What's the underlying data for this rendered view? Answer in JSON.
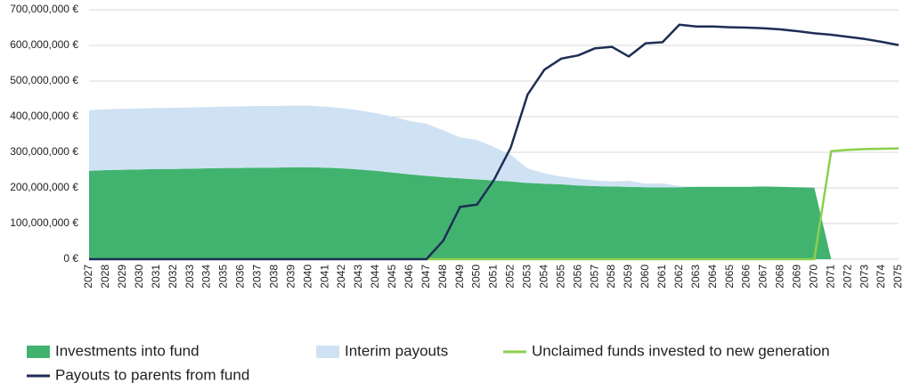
{
  "chart_data": {
    "type": "stacked-area-line",
    "categories": [
      "2027",
      "2028",
      "2029",
      "2030",
      "2031",
      "2032",
      "2033",
      "2034",
      "2035",
      "2036",
      "2037",
      "2038",
      "2039",
      "2040",
      "2041",
      "2042",
      "2043",
      "2044",
      "2045",
      "2046",
      "2047",
      "2048",
      "2049",
      "2050",
      "2051",
      "2052",
      "2053",
      "2054",
      "2055",
      "2056",
      "2057",
      "2058",
      "2059",
      "2060",
      "2061",
      "2062",
      "2063",
      "2064",
      "2065",
      "2066",
      "2067",
      "2068",
      "2069",
      "2070",
      "2071",
      "2072",
      "2073",
      "2074",
      "2075"
    ],
    "series": [
      {
        "name": "Investments into fund",
        "kind": "area",
        "color": "#41b36f",
        "values": [
          248000000,
          250000000,
          251000000,
          252000000,
          253000000,
          253000000,
          254000000,
          255000000,
          256000000,
          256000000,
          257000000,
          257000000,
          258000000,
          258000000,
          257000000,
          255000000,
          252000000,
          248000000,
          243000000,
          238000000,
          234000000,
          230000000,
          227000000,
          224000000,
          221000000,
          218000000,
          214000000,
          212000000,
          210000000,
          207000000,
          205000000,
          204000000,
          203000000,
          202000000,
          202000000,
          202000000,
          203000000,
          203000000,
          203000000,
          203000000,
          204000000,
          203000000,
          202000000,
          201000000,
          0,
          0,
          0,
          0,
          0
        ]
      },
      {
        "name": "Interim payouts",
        "kind": "area",
        "color": "#cfe2f3",
        "values": [
          170000000,
          171000000,
          171000000,
          171000000,
          171000000,
          172000000,
          172000000,
          172000000,
          172000000,
          173000000,
          173000000,
          173000000,
          173000000,
          173000000,
          171000000,
          169000000,
          166000000,
          162000000,
          157000000,
          150000000,
          146000000,
          132000000,
          115000000,
          111000000,
          94000000,
          75000000,
          41000000,
          29000000,
          22000000,
          19000000,
          16000000,
          14000000,
          17000000,
          10000000,
          11000000,
          3000000,
          0,
          0,
          0,
          0,
          0,
          0,
          0,
          0,
          0,
          0,
          0,
          0,
          0
        ]
      },
      {
        "name": "Unclaimed funds invested to new generation",
        "kind": "line",
        "color": "#8ccf4d",
        "values": [
          null,
          null,
          null,
          null,
          null,
          null,
          null,
          null,
          null,
          null,
          null,
          null,
          null,
          null,
          null,
          null,
          null,
          null,
          null,
          null,
          0,
          0,
          0,
          0,
          0,
          0,
          0,
          0,
          0,
          0,
          0,
          0,
          0,
          0,
          0,
          0,
          0,
          0,
          0,
          0,
          0,
          0,
          0,
          0,
          303000000,
          307000000,
          309000000,
          310000000,
          311000000
        ]
      },
      {
        "name": "Payouts to parents from fund",
        "kind": "line",
        "color": "#1f2d55",
        "values": [
          0,
          0,
          0,
          0,
          0,
          0,
          0,
          0,
          0,
          0,
          0,
          0,
          0,
          0,
          0,
          0,
          0,
          0,
          0,
          0,
          0,
          52000000,
          147000000,
          153000000,
          222000000,
          313000000,
          462000000,
          532000000,
          563000000,
          572000000,
          592000000,
          596000000,
          569000000,
          606000000,
          609000000,
          658000000,
          653000000,
          653000000,
          651000000,
          650000000,
          648000000,
          645000000,
          640000000,
          634000000,
          630000000,
          624000000,
          618000000,
          610000000,
          601000000
        ]
      }
    ],
    "ylim": [
      0,
      700000000
    ],
    "yticks": [
      {
        "value": 0,
        "label": "0 €"
      },
      {
        "value": 100000000,
        "label": "100,000,000 €"
      },
      {
        "value": 200000000,
        "label": "200,000,000 €"
      },
      {
        "value": 300000000,
        "label": "300,000,000 €"
      },
      {
        "value": 400000000,
        "label": "400,000,000 €"
      },
      {
        "value": 500000000,
        "label": "500,000,000 €"
      },
      {
        "value": 600000000,
        "label": "600,000,000 €"
      },
      {
        "value": 700000000,
        "label": "700,000,000 €"
      }
    ],
    "grid": true
  }
}
